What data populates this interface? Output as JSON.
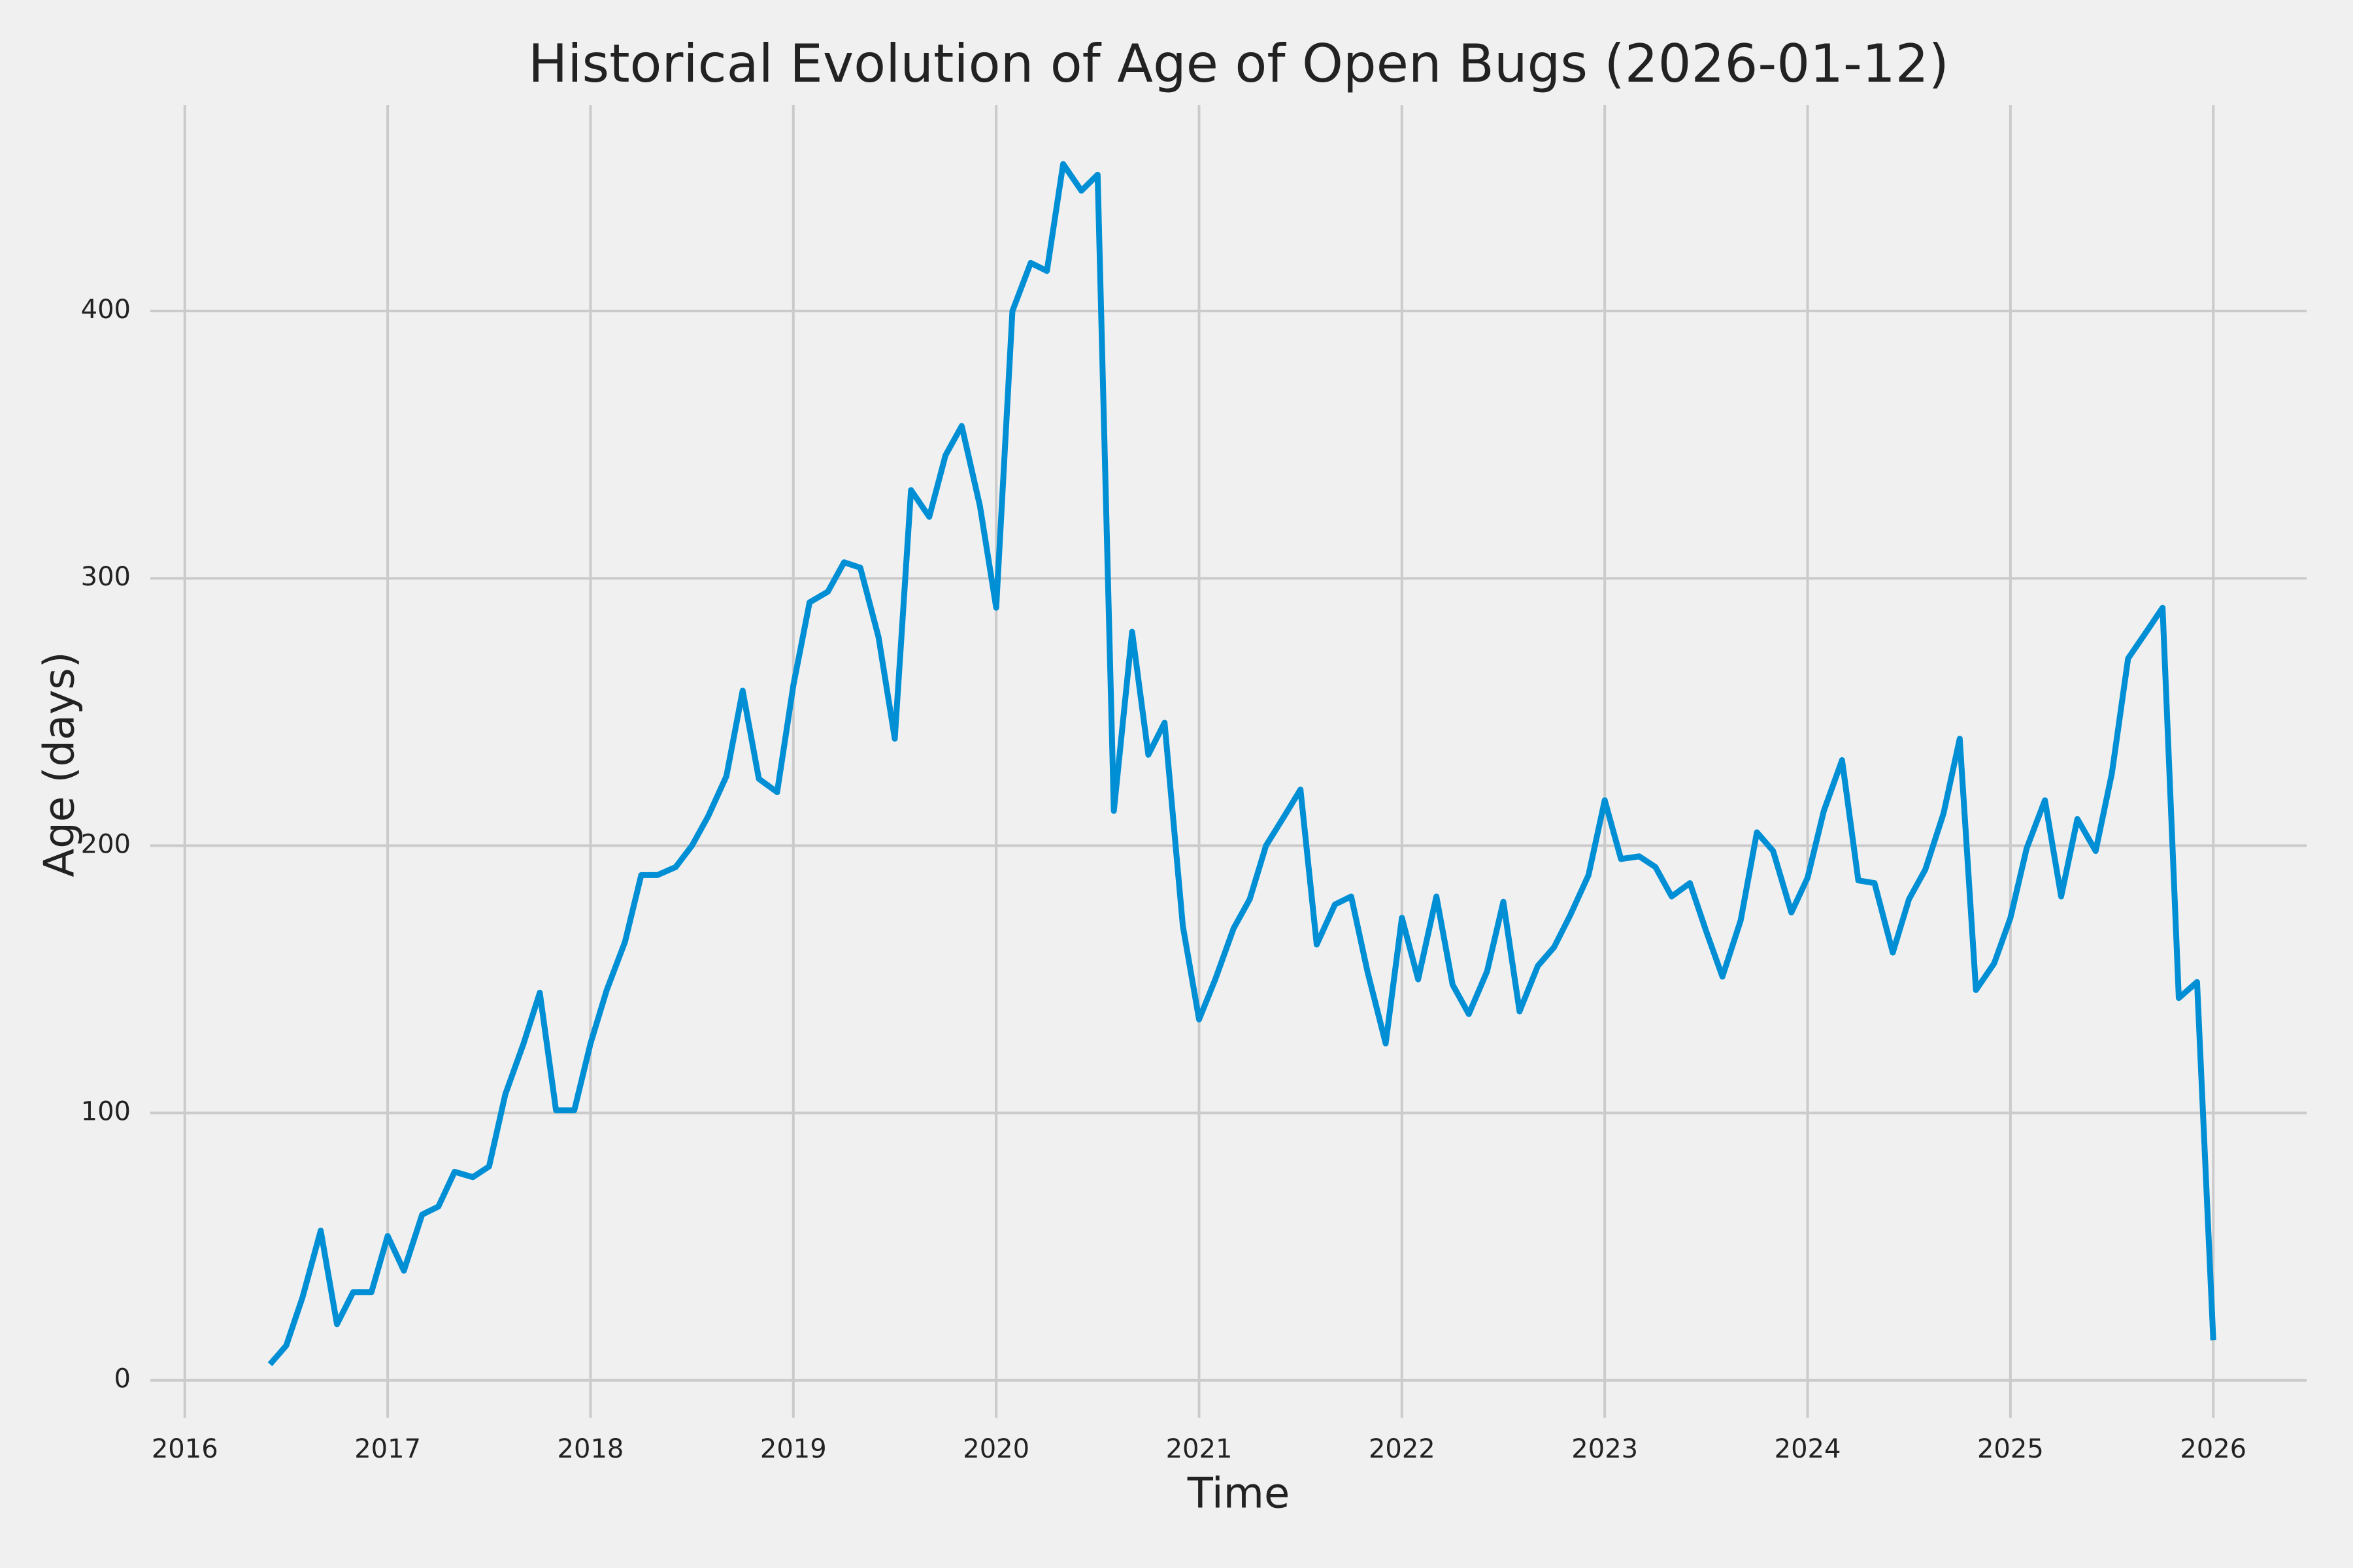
{
  "chart_data": {
    "type": "line",
    "title": "Historical Evolution of Age of Open Bugs (2026-01-12)",
    "x_label": "Time",
    "y_label": "Age (days)",
    "x": [
      2016.42,
      2016.5,
      2016.58,
      2016.67,
      2016.75,
      2016.83,
      2016.92,
      2017.0,
      2017.08,
      2017.17,
      2017.25,
      2017.33,
      2017.42,
      2017.5,
      2017.58,
      2017.67,
      2017.75,
      2017.83,
      2017.92,
      2018.0,
      2018.08,
      2018.17,
      2018.25,
      2018.33,
      2018.42,
      2018.5,
      2018.58,
      2018.67,
      2018.75,
      2018.83,
      2018.92,
      2019.0,
      2019.08,
      2019.17,
      2019.25,
      2019.33,
      2019.42,
      2019.5,
      2019.58,
      2019.67,
      2019.75,
      2019.83,
      2019.92,
      2020.0,
      2020.08,
      2020.17,
      2020.25,
      2020.33,
      2020.42,
      2020.5,
      2020.58,
      2020.67,
      2020.75,
      2020.83,
      2020.92,
      2021.0,
      2021.08,
      2021.17,
      2021.25,
      2021.33,
      2021.42,
      2021.5,
      2021.58,
      2021.67,
      2021.75,
      2021.83,
      2021.92,
      2022.0,
      2022.08,
      2022.17,
      2022.25,
      2022.33,
      2022.42,
      2022.5,
      2022.58,
      2022.67,
      2022.75,
      2022.83,
      2022.92,
      2023.0,
      2023.08,
      2023.17,
      2023.25,
      2023.33,
      2023.42,
      2023.5,
      2023.58,
      2023.67,
      2023.75,
      2023.83,
      2023.92,
      2024.0,
      2024.08,
      2024.17,
      2024.25,
      2024.33,
      2024.42,
      2024.5,
      2024.58,
      2024.67,
      2024.75,
      2024.83,
      2024.92,
      2025.0,
      2025.08,
      2025.17,
      2025.25,
      2025.33,
      2025.42,
      2025.5,
      2025.58,
      2025.67,
      2025.75,
      2025.83,
      2025.92,
      2026.0
    ],
    "series": [
      {
        "name": "Age",
        "color": "#008fd5",
        "values": [
          6,
          13,
          31,
          56,
          21,
          33,
          33,
          54,
          41,
          62,
          65,
          78,
          76,
          80,
          107,
          126,
          145,
          101,
          101,
          126,
          146,
          164,
          189,
          189,
          192,
          200,
          211,
          226,
          258,
          225,
          220,
          260,
          291,
          295,
          306,
          304,
          278,
          240,
          333,
          323,
          346,
          357,
          327,
          289,
          400,
          418,
          415,
          455,
          445,
          451,
          213,
          280,
          234,
          246,
          170,
          135,
          150,
          169,
          180,
          200,
          211,
          221,
          163,
          178,
          181,
          153,
          126,
          173,
          150,
          181,
          148,
          137,
          153,
          179,
          138,
          155,
          162,
          174,
          189,
          217,
          195,
          196,
          192,
          181,
          186,
          168,
          151,
          172,
          205,
          198,
          175,
          188,
          213,
          232,
          187,
          186,
          160,
          180,
          191,
          212,
          240,
          146,
          156,
          173,
          199,
          217,
          181,
          210,
          198,
          227,
          270,
          280,
          289,
          143,
          149,
          15
        ]
      }
    ],
    "xlim": [
      2015.83,
      2026.46
    ],
    "ylim": [
      -14,
      477
    ],
    "xticks": [
      2016,
      2017,
      2018,
      2019,
      2020,
      2021,
      2022,
      2023,
      2024,
      2025,
      2026
    ],
    "yticks": [
      0,
      100,
      200,
      300,
      400
    ],
    "grid": true
  }
}
